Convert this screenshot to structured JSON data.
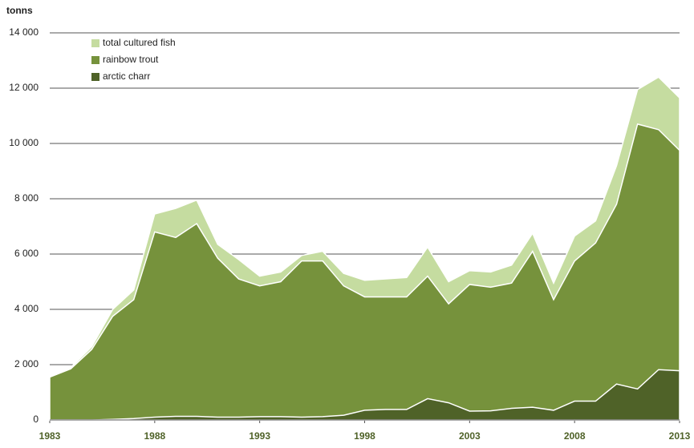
{
  "chart_data": {
    "type": "area",
    "y_label": "tonns",
    "x": [
      1983,
      1984,
      1985,
      1986,
      1987,
      1988,
      1989,
      1990,
      1991,
      1992,
      1993,
      1994,
      1995,
      1996,
      1997,
      1998,
      1999,
      2000,
      2001,
      2002,
      2003,
      2004,
      2005,
      2006,
      2007,
      2008,
      2009,
      2010,
      2011,
      2012,
      2013
    ],
    "xlim": [
      1983,
      2013
    ],
    "xticks": [
      1983,
      1988,
      1993,
      1998,
      2003,
      2008,
      2013
    ],
    "ylim": [
      0,
      14000
    ],
    "yticks": [
      0,
      {
        "value": 2000,
        "label": "2 000"
      },
      {
        "value": 4000,
        "label": "4 000"
      },
      {
        "value": 6000,
        "label": "6 000"
      },
      {
        "value": 8000,
        "label": "8 000"
      },
      {
        "value": 10000,
        "label": "10 000"
      },
      {
        "value": 12000,
        "label": "12 000"
      },
      {
        "value": 14000,
        "label": "14 000"
      }
    ],
    "grid": true,
    "legend": "upper left",
    "series": [
      {
        "name": "total cultured fish",
        "color": "#c5dca0",
        "values": [
          1550,
          1900,
          2650,
          4000,
          4700,
          7450,
          7650,
          7950,
          6350,
          5800,
          5200,
          5350,
          5950,
          6100,
          5300,
          5050,
          5100,
          5150,
          6250,
          5000,
          5400,
          5350,
          5600,
          6750,
          4950,
          6650,
          7200,
          9200,
          11950,
          12400,
          11650
        ]
      },
      {
        "name": "rainbow trout",
        "color": "#76923c",
        "values": [
          1550,
          1850,
          2550,
          3750,
          4350,
          6800,
          6600,
          7100,
          5850,
          5100,
          4850,
          5000,
          5750,
          5750,
          4850,
          4450,
          4450,
          4450,
          5200,
          4200,
          4900,
          4800,
          4950,
          6100,
          4350,
          5750,
          6400,
          7800,
          10700,
          10500,
          9750
        ]
      },
      {
        "name": "arctic charr",
        "color": "#4f6228",
        "values": [
          0,
          0,
          0,
          20,
          50,
          100,
          130,
          130,
          100,
          100,
          120,
          120,
          100,
          120,
          170,
          350,
          380,
          380,
          770,
          620,
          320,
          330,
          420,
          460,
          350,
          680,
          680,
          1300,
          1120,
          1820,
          1780
        ]
      }
    ]
  }
}
